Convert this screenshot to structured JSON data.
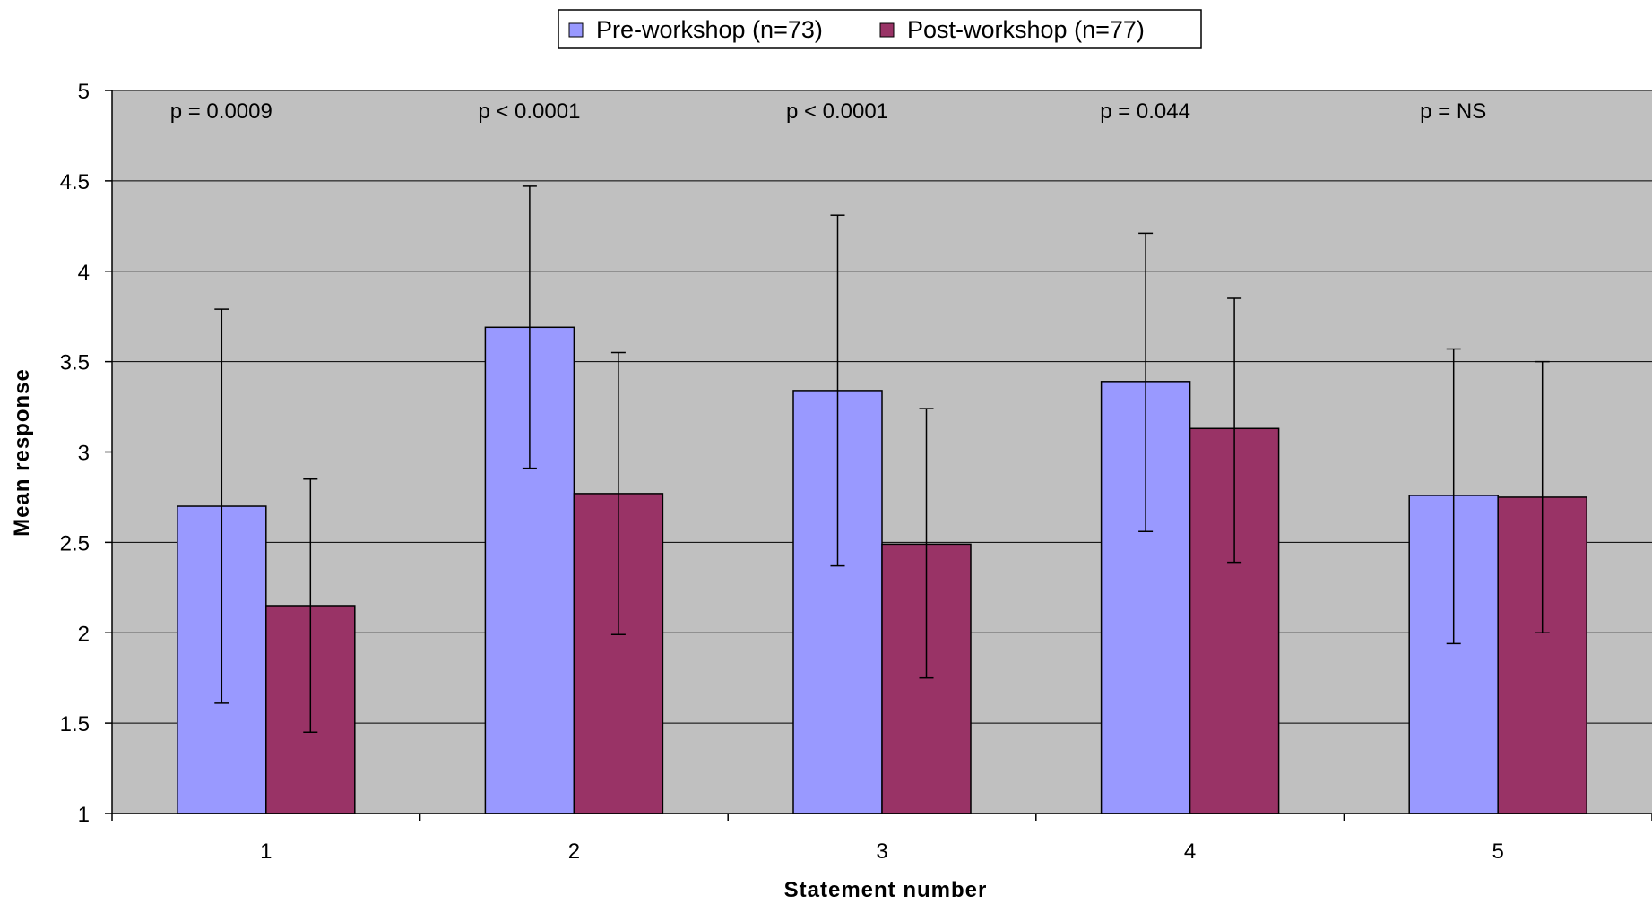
{
  "chart_data": {
    "type": "bar",
    "title": "",
    "xlabel": "Statement number",
    "ylabel": "Mean response",
    "categories": [
      "1",
      "2",
      "3",
      "4",
      "5"
    ],
    "ylim": [
      1,
      5
    ],
    "yticks": [
      "1",
      "1.5",
      "2",
      "2.5",
      "3",
      "3.5",
      "4",
      "4.5",
      "5"
    ],
    "grid": true,
    "legend_position": "top-center",
    "plot_background": "#c0c0c0",
    "series": [
      {
        "name": "Pre-workshop (n=73)",
        "color": "#9999ff",
        "values": [
          2.7,
          3.69,
          3.34,
          3.39,
          2.76
        ],
        "error_low": [
          1.61,
          2.91,
          2.37,
          2.56,
          1.94
        ],
        "error_high": [
          3.79,
          4.47,
          4.31,
          4.21,
          3.57
        ]
      },
      {
        "name": "Post-workshop (n=77)",
        "color": "#993366",
        "values": [
          2.15,
          2.77,
          2.49,
          3.13,
          2.75
        ],
        "error_low": [
          1.45,
          1.99,
          1.75,
          2.39,
          2.0
        ],
        "error_high": [
          2.85,
          3.55,
          3.24,
          3.85,
          3.5
        ]
      }
    ],
    "annotations": [
      "p = 0.0009",
      "p < 0.0001",
      "p < 0.0001",
      "p = 0.044",
      "p = NS"
    ]
  }
}
